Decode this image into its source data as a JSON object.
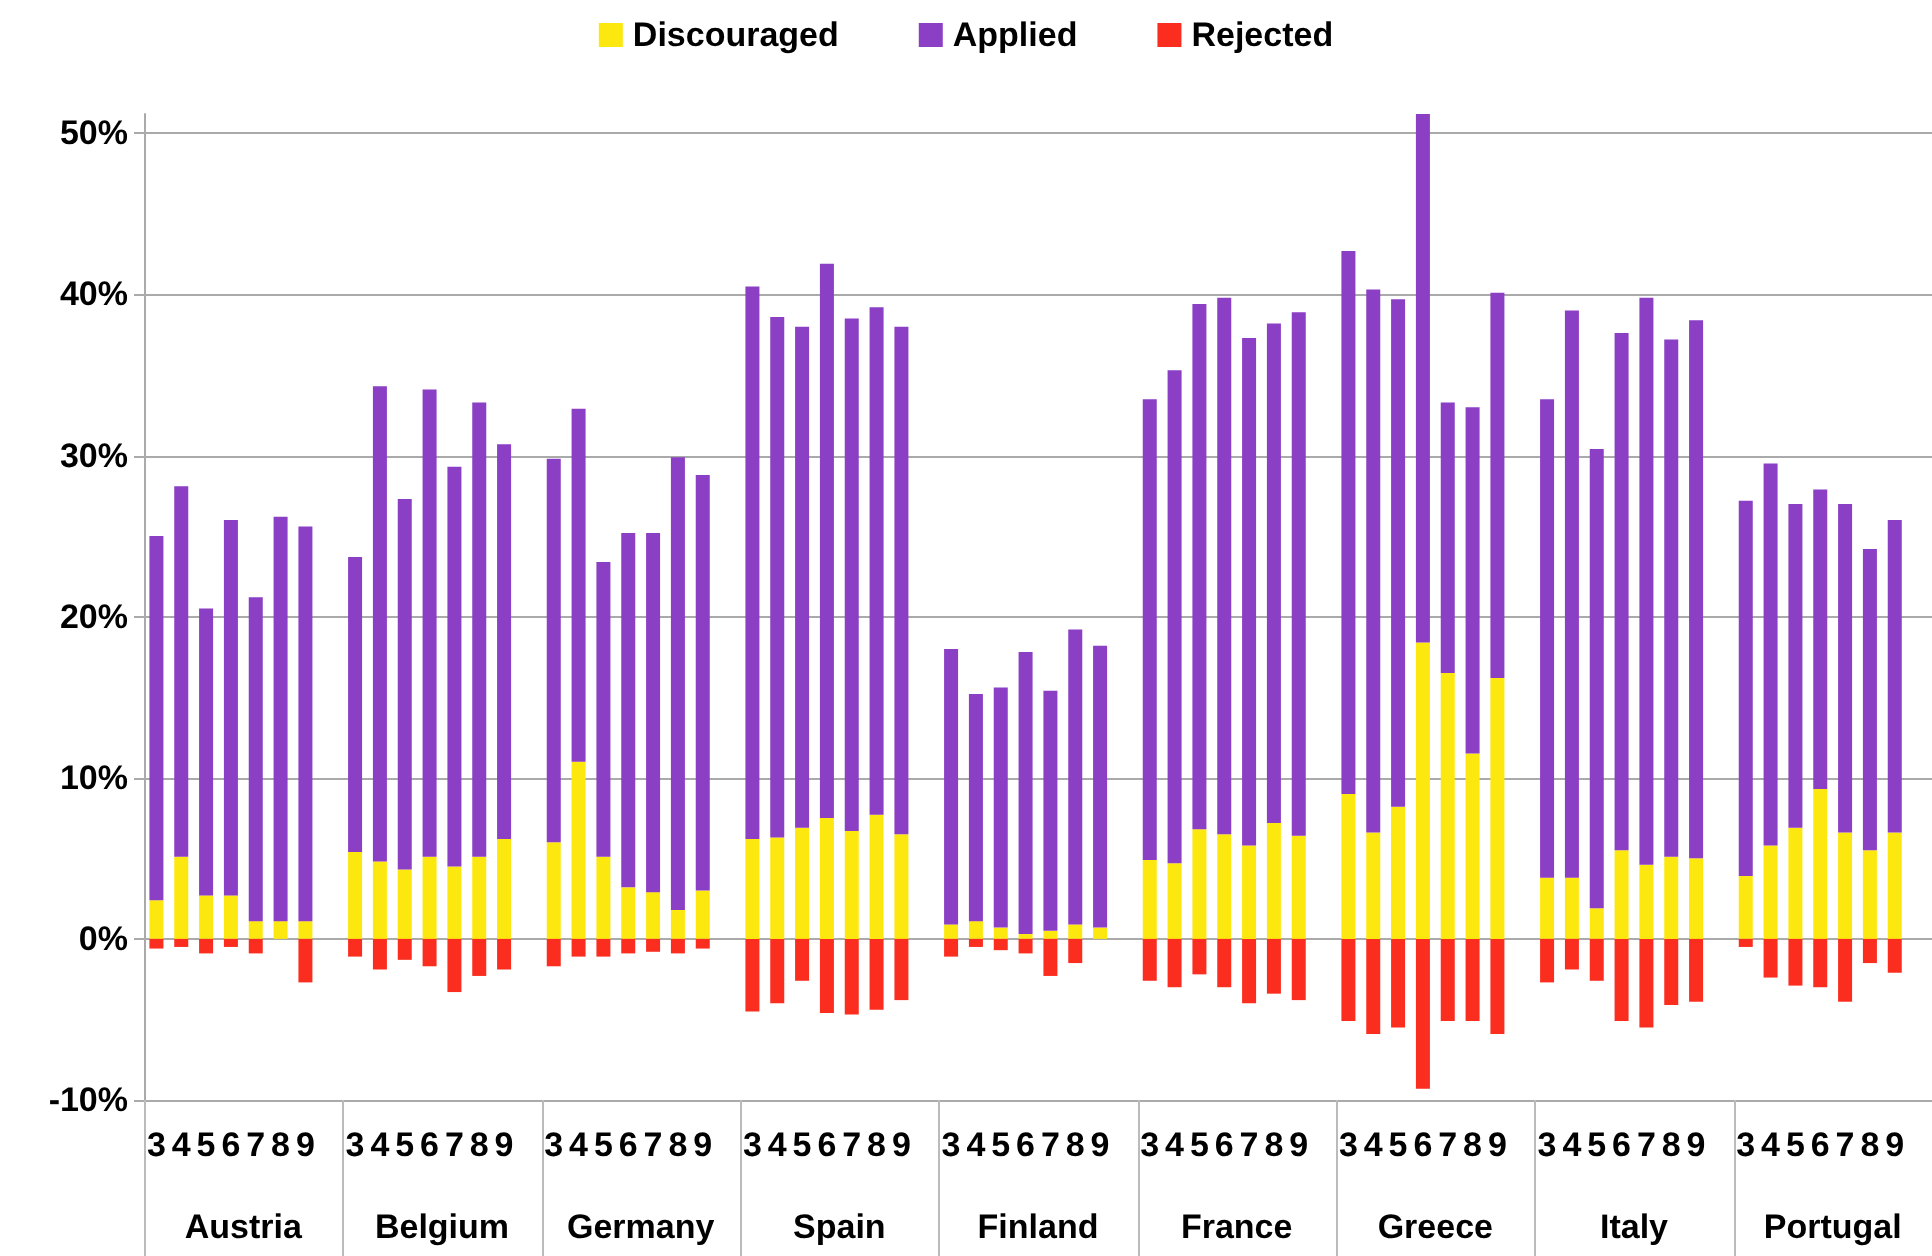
{
  "chart_data": {
    "type": "bar",
    "stacked": true,
    "categories": [
      "3",
      "4",
      "5",
      "6",
      "7",
      "8",
      "9",
      null,
      "3",
      "4",
      "5",
      "6",
      "7",
      "8",
      "9",
      null,
      "3",
      "4",
      "5",
      "6",
      "7",
      "8",
      "9",
      null,
      "3",
      "4",
      "5",
      "6",
      "7",
      "8",
      "9",
      null,
      "3",
      "4",
      "5",
      "6",
      "7",
      "8",
      "9",
      null,
      "3",
      "4",
      "5",
      "6",
      "7",
      "8",
      "9",
      null,
      "3",
      "4",
      "5",
      "6",
      "7",
      "8",
      "9",
      null,
      "3",
      "4",
      "5",
      "6",
      "7",
      "8",
      "9",
      null,
      "3",
      "4",
      "5",
      "6",
      "7",
      "8",
      "9",
      null
    ],
    "annotations": [
      "Austria",
      "Belgium",
      "Germany",
      "Spain",
      "Finland",
      "France",
      "Greece",
      "Italy",
      "Portugal"
    ],
    "series": [
      {
        "name": "Discouraged",
        "color": "#fce80f",
        "values": [
          2.4,
          5.1,
          2.7,
          2.7,
          1.1,
          1.1,
          1.1,
          null,
          5.4,
          4.8,
          4.3,
          5.1,
          4.5,
          5.1,
          6.2,
          null,
          6.0,
          11.0,
          5.1,
          3.2,
          2.9,
          1.8,
          3.0,
          null,
          6.2,
          6.3,
          6.9,
          7.5,
          6.7,
          7.7,
          6.5,
          null,
          0.9,
          1.1,
          0.7,
          0.3,
          0.5,
          0.9,
          0.7,
          null,
          4.9,
          4.7,
          6.8,
          6.5,
          5.8,
          7.2,
          6.4,
          null,
          9.0,
          6.6,
          8.2,
          18.4,
          16.5,
          11.5,
          16.2,
          null,
          3.8,
          3.8,
          1.9,
          5.5,
          4.6,
          5.1,
          5.0,
          null,
          3.9,
          5.8,
          6.9,
          9.3,
          6.6,
          5.5,
          6.6,
          null
        ]
      },
      {
        "name": "Applied",
        "color": "#8b3fc4",
        "values": [
          22.6,
          23.0,
          17.8,
          23.3,
          20.1,
          25.1,
          24.5,
          null,
          18.3,
          29.5,
          23.0,
          29.0,
          24.8,
          28.2,
          24.5,
          null,
          23.8,
          21.9,
          18.3,
          22.0,
          22.3,
          28.1,
          25.8,
          null,
          34.3,
          32.3,
          31.1,
          34.4,
          31.8,
          31.5,
          31.5,
          null,
          17.1,
          14.1,
          14.9,
          17.5,
          14.9,
          18.3,
          17.5,
          null,
          28.6,
          30.6,
          32.6,
          33.3,
          31.5,
          31.0,
          32.5,
          null,
          33.7,
          33.7,
          31.5,
          32.8,
          16.8,
          21.5,
          23.9,
          null,
          29.7,
          35.2,
          28.5,
          32.1,
          35.2,
          32.1,
          33.4,
          null,
          23.3,
          23.7,
          20.1,
          18.6,
          20.4,
          18.7,
          19.4,
          null
        ]
      },
      {
        "name": "Rejected",
        "color": "#fa2d1f",
        "values": [
          -0.6,
          -0.5,
          -0.9,
          -0.5,
          -0.9,
          0,
          -2.7,
          null,
          -1.1,
          -1.9,
          -1.3,
          -1.7,
          -3.3,
          -2.3,
          -1.9,
          null,
          -1.7,
          -1.1,
          -1.1,
          -0.9,
          -0.8,
          -0.9,
          -0.6,
          null,
          -4.5,
          -4.0,
          -2.6,
          -4.6,
          -4.7,
          -4.4,
          -3.8,
          null,
          -1.1,
          -0.5,
          -0.7,
          -0.9,
          -2.3,
          -1.5,
          0,
          null,
          -2.6,
          -3.0,
          -2.2,
          -3.0,
          -4.0,
          -3.4,
          -3.8,
          null,
          -5.1,
          -5.9,
          -5.5,
          -9.3,
          -5.1,
          -5.1,
          -5.9,
          null,
          -2.7,
          -1.9,
          -2.6,
          -5.1,
          -5.5,
          -4.1,
          -3.9,
          null,
          -0.5,
          -2.4,
          -2.9,
          -3.0,
          -3.9,
          -1.5,
          -2.1,
          null
        ]
      }
    ],
    "ylim": [
      -10,
      51.2
    ],
    "yticks": [
      {
        "value": -10,
        "label": "-10%"
      },
      {
        "value": 0,
        "label": "0%"
      },
      {
        "value": 10,
        "label": "10%"
      },
      {
        "value": 20,
        "label": "20%"
      },
      {
        "value": 30,
        "label": "30%"
      },
      {
        "value": 40,
        "label": "40%"
      },
      {
        "value": 50,
        "label": "50%"
      }
    ],
    "grid": "y",
    "legend": "top"
  }
}
